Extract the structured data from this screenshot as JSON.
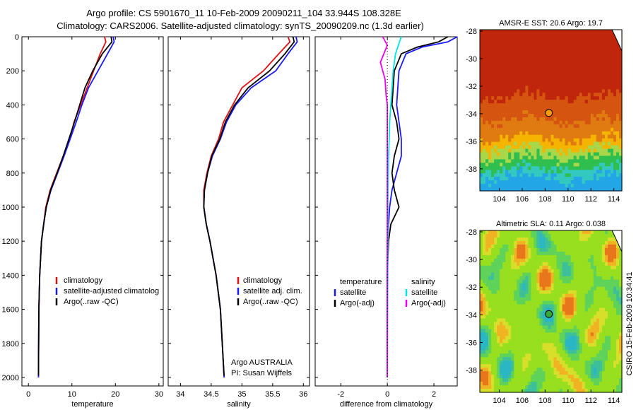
{
  "title_line1": "Argo profile: CS 5901670_11 10-Feb-2009 20090211_104 33.944S 108.328E",
  "title_line2": "Climatology: CARS2006. Satellite-adjusted climatology: synTS_20090209.nc (1.3d earlier)",
  "side_label": "CSIRO 15-Feb-2009 10:34:41",
  "colors": {
    "red": "#e01010",
    "blue": "#1a1aff",
    "black": "#000000",
    "cyan": "#00e5e5",
    "magenta": "#ee00ee",
    "marker_sst": "#ff9900",
    "marker_sla": "#33aa33"
  },
  "chart_data": [
    {
      "type": "line",
      "name": "temperature-panel",
      "xlabel": "temperature",
      "ylabel": "",
      "xlim": [
        -1.5,
        31
      ],
      "ylim": [
        2050,
        0
      ],
      "y_reversed": true,
      "xticks": [
        "0",
        "10",
        "20",
        "30"
      ],
      "yticks": [
        "0",
        "200",
        "400",
        "600",
        "800",
        "1000",
        "1200",
        "1400",
        "1600",
        "1800",
        "2000"
      ],
      "legend": [
        "climatology",
        "satellite-adjusted climatolog",
        "Argo(..raw -QC)"
      ],
      "series": [
        {
          "name": "climatology",
          "color": "red",
          "x": [
            17.5,
            17.8,
            16.5,
            15.0,
            13.5,
            12.0,
            10.5,
            9.5,
            8.0,
            6.5,
            5.0,
            4.0,
            3.5,
            3.0,
            2.6,
            2.4,
            2.3
          ],
          "y": [
            0,
            30,
            100,
            200,
            300,
            400,
            500,
            600,
            700,
            800,
            900,
            1000,
            1100,
            1200,
            1400,
            1600,
            2000
          ]
        },
        {
          "name": "satellite-adjusted climatology",
          "color": "blue",
          "x": [
            19.5,
            19.7,
            18.2,
            16.0,
            13.8,
            12.3,
            11.0,
            9.6,
            8.2,
            6.7,
            5.2,
            4.1,
            3.5,
            3.0,
            2.6,
            2.4,
            2.3
          ],
          "y": [
            0,
            30,
            100,
            200,
            300,
            400,
            500,
            600,
            700,
            800,
            900,
            1000,
            1100,
            1200,
            1400,
            1600,
            2000
          ]
        },
        {
          "name": "Argo",
          "color": "black",
          "x": [
            19.0,
            19.2,
            17.0,
            14.8,
            13.0,
            11.8,
            10.6,
            9.3,
            8.0,
            6.6,
            5.1,
            4.1,
            3.5,
            3.0,
            2.6,
            2.4,
            2.3
          ],
          "y": [
            0,
            30,
            100,
            200,
            300,
            400,
            500,
            600,
            700,
            800,
            900,
            1000,
            1100,
            1200,
            1400,
            1600,
            1990
          ]
        }
      ]
    },
    {
      "type": "line",
      "name": "salinity-panel",
      "xlabel": "salinity",
      "ylabel": "",
      "xlim": [
        33.8,
        36.1
      ],
      "ylim": [
        2050,
        0
      ],
      "y_reversed": true,
      "xticks": [
        "34",
        "34.5",
        "35",
        "35.5",
        "36"
      ],
      "legend": [
        "climatology",
        "satellite adj. clim.",
        "Argo(..raw -QC)"
      ],
      "annotation": [
        "Argo AUSTRALIA",
        "PI: Susan Wijffels"
      ],
      "series": [
        {
          "name": "climatology",
          "color": "red",
          "x": [
            35.75,
            35.78,
            35.6,
            35.35,
            35.0,
            34.85,
            34.7,
            34.62,
            34.5,
            34.43,
            34.38,
            34.38,
            34.42,
            34.48,
            34.58,
            34.65,
            34.71
          ],
          "y": [
            0,
            30,
            100,
            200,
            300,
            400,
            500,
            600,
            700,
            800,
            900,
            1000,
            1100,
            1200,
            1400,
            1600,
            2000
          ]
        },
        {
          "name": "satellite adj. clim.",
          "color": "blue",
          "x": [
            35.88,
            35.9,
            35.75,
            35.55,
            35.15,
            34.9,
            34.75,
            34.65,
            34.52,
            34.44,
            34.39,
            34.38,
            34.42,
            34.48,
            34.58,
            34.65,
            34.71
          ],
          "y": [
            0,
            30,
            100,
            200,
            300,
            400,
            500,
            600,
            700,
            800,
            900,
            1000,
            1100,
            1200,
            1400,
            1600,
            2000
          ]
        },
        {
          "name": "Argo",
          "color": "black",
          "x": [
            35.83,
            35.85,
            35.7,
            35.45,
            35.1,
            34.88,
            34.73,
            34.64,
            34.51,
            34.44,
            34.39,
            34.38,
            34.42,
            34.48,
            34.58,
            34.65,
            34.71
          ],
          "y": [
            0,
            30,
            100,
            200,
            300,
            400,
            500,
            600,
            700,
            800,
            900,
            1000,
            1100,
            1200,
            1400,
            1600,
            1990
          ]
        }
      ]
    },
    {
      "type": "line",
      "name": "difference-panel",
      "xlabel": "difference from climatology",
      "ylabel": "",
      "xlim": [
        -3.1,
        3.0
      ],
      "ylim": [
        2050,
        0
      ],
      "y_reversed": true,
      "xticks": [
        "-2",
        "0",
        "2"
      ],
      "legend_left_title": "temperature",
      "legend_right_title": "salinity",
      "legend_left": [
        "satellite",
        "Argo(-adj)"
      ],
      "legend_right": [
        "satellite",
        "Argo(-adj)"
      ],
      "series": [
        {
          "name": "temperature satellite",
          "color": "blue",
          "x": [
            3.0,
            2.6,
            1.5,
            0.8,
            0.5,
            0.4,
            0.5,
            0.6,
            0.6,
            0.4,
            0.2,
            0.1,
            0.05,
            0.0,
            0.0,
            0.0,
            0.0
          ],
          "y": [
            0,
            30,
            60,
            100,
            200,
            400,
            500,
            600,
            700,
            800,
            900,
            1000,
            1100,
            1200,
            1400,
            1600,
            2000
          ]
        },
        {
          "name": "temperature Argo(-adj)",
          "color": "black",
          "x": [
            2.6,
            2.2,
            1.3,
            0.6,
            0.3,
            0.2,
            0.4,
            0.5,
            0.3,
            0.2,
            0.3,
            0.5,
            0.15,
            0.05,
            0.0,
            0.0,
            0.0
          ],
          "y": [
            0,
            30,
            60,
            100,
            200,
            400,
            500,
            600,
            700,
            800,
            900,
            1000,
            1100,
            1200,
            1400,
            1600,
            2000
          ]
        },
        {
          "name": "salinity satellite",
          "color": "cyan",
          "x": [
            0.6,
            0.5,
            0.35,
            0.25,
            0.2,
            0.15,
            0.1,
            0.08,
            0.05,
            0.04,
            0.03,
            0.02,
            0.02,
            0.02,
            0.0
          ],
          "y": [
            0,
            40,
            100,
            200,
            300,
            400,
            500,
            600,
            700,
            800,
            900,
            1000,
            1200,
            1400,
            2000
          ]
        },
        {
          "name": "salinity Argo(-adj)",
          "color": "magenta",
          "x": [
            -0.2,
            0.0,
            -0.3,
            -0.1,
            -0.05,
            0.0,
            0.0,
            0.0,
            0.0,
            0.0
          ],
          "y": [
            0,
            50,
            150,
            250,
            350,
            400,
            600,
            800,
            1000,
            2000
          ]
        }
      ]
    },
    {
      "type": "heatmap",
      "name": "sst-map",
      "title": "AMSR-E SST: 20.6  Argo: 19.7",
      "xlim": [
        102.3,
        114.7
      ],
      "ylim": [
        -39.6,
        -27.9
      ],
      "xticks": [
        "104",
        "106",
        "108",
        "110",
        "112",
        "114"
      ],
      "yticks": [
        "-28",
        "-30",
        "-32",
        "-34",
        "-36",
        "-38"
      ],
      "marker": {
        "lon": 108.328,
        "lat": -33.944
      }
    },
    {
      "type": "heatmap",
      "name": "sla-map",
      "title": "Altimetric SLA: 0.11  Argo: 0.038",
      "xlim": [
        102.3,
        114.7
      ],
      "ylim": [
        -39.6,
        -27.9
      ],
      "xticks": [
        "104",
        "106",
        "108",
        "110",
        "112",
        "114"
      ],
      "yticks": [
        "-28",
        "-30",
        "-32",
        "-34",
        "-36",
        "-38"
      ],
      "marker": {
        "lon": 108.328,
        "lat": -33.944
      }
    }
  ]
}
